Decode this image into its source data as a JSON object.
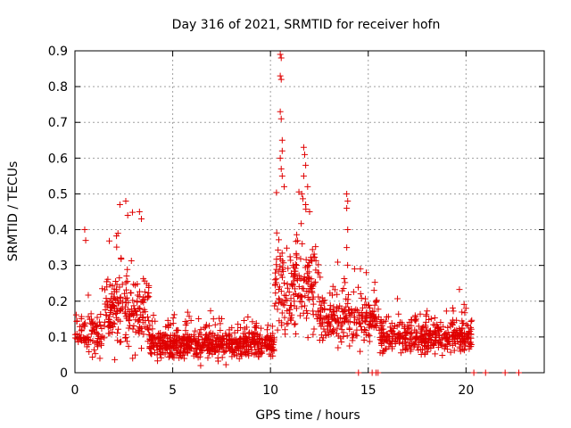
{
  "chart_data": {
    "type": "scatter",
    "title": "Day 316 of 2021, SRMTID for receiver hofn",
    "xlabel": "GPS time / hours",
    "ylabel": "SRMTID / TECUs",
    "xlim": [
      0,
      24
    ],
    "ylim": [
      0,
      0.9
    ],
    "x_ticks": [
      0,
      5,
      10,
      15,
      20
    ],
    "y_ticks": [
      0,
      0.1,
      0.2,
      0.3,
      0.4,
      0.5,
      0.6,
      0.7,
      0.8,
      0.9
    ],
    "x_tick_labels": [
      "0",
      "5",
      "10",
      "15",
      "20"
    ],
    "y_tick_labels": [
      "0",
      "0.1",
      "0.2",
      "0.3",
      "0.4",
      "0.5",
      "0.6",
      "0.7",
      "0.8",
      "0.9"
    ],
    "grid": true,
    "marker": "+",
    "marker_color": "#e00000",
    "activity_profile": [
      {
        "from": 0.0,
        "to": 1.5,
        "center": 0.11,
        "spread": 0.05,
        "density": 10
      },
      {
        "from": 1.5,
        "to": 3.8,
        "center": 0.17,
        "spread": 0.09,
        "density": 14
      },
      {
        "from": 3.8,
        "to": 10.2,
        "center": 0.08,
        "spread": 0.035,
        "density": 16
      },
      {
        "from": 10.2,
        "to": 12.5,
        "center": 0.24,
        "spread": 0.12,
        "density": 14
      },
      {
        "from": 12.5,
        "to": 15.6,
        "center": 0.15,
        "spread": 0.06,
        "density": 12
      },
      {
        "from": 15.6,
        "to": 20.3,
        "center": 0.1,
        "spread": 0.04,
        "density": 14
      }
    ],
    "outliers": [
      {
        "x": 0.5,
        "y": 0.4
      },
      {
        "x": 0.55,
        "y": 0.37
      },
      {
        "x": 2.3,
        "y": 0.47
      },
      {
        "x": 2.6,
        "y": 0.48
      },
      {
        "x": 2.7,
        "y": 0.44
      },
      {
        "x": 3.3,
        "y": 0.45
      },
      {
        "x": 3.4,
        "y": 0.43
      },
      {
        "x": 2.2,
        "y": 0.39
      },
      {
        "x": 10.5,
        "y": 0.89
      },
      {
        "x": 10.55,
        "y": 0.88
      },
      {
        "x": 10.5,
        "y": 0.83
      },
      {
        "x": 10.55,
        "y": 0.82
      },
      {
        "x": 10.5,
        "y": 0.73
      },
      {
        "x": 10.55,
        "y": 0.71
      },
      {
        "x": 10.6,
        "y": 0.65
      },
      {
        "x": 10.6,
        "y": 0.62
      },
      {
        "x": 10.5,
        "y": 0.6
      },
      {
        "x": 10.55,
        "y": 0.57
      },
      {
        "x": 10.6,
        "y": 0.55
      },
      {
        "x": 10.7,
        "y": 0.52
      },
      {
        "x": 11.7,
        "y": 0.63
      },
      {
        "x": 11.75,
        "y": 0.61
      },
      {
        "x": 11.8,
        "y": 0.58
      },
      {
        "x": 11.7,
        "y": 0.55
      },
      {
        "x": 11.9,
        "y": 0.52
      },
      {
        "x": 11.6,
        "y": 0.5
      },
      {
        "x": 11.8,
        "y": 0.47
      },
      {
        "x": 12.0,
        "y": 0.45
      },
      {
        "x": 13.9,
        "y": 0.5
      },
      {
        "x": 13.95,
        "y": 0.48
      },
      {
        "x": 13.9,
        "y": 0.46
      },
      {
        "x": 13.95,
        "y": 0.4
      },
      {
        "x": 13.9,
        "y": 0.35
      },
      {
        "x": 14.3,
        "y": 0.29
      },
      {
        "x": 14.6,
        "y": 0.29
      },
      {
        "x": 14.9,
        "y": 0.28
      }
    ],
    "zero_points": [
      {
        "x": 14.5,
        "y": 0
      },
      {
        "x": 15.2,
        "y": 0
      },
      {
        "x": 15.4,
        "y": 0
      },
      {
        "x": 15.5,
        "y": 0
      },
      {
        "x": 20.4,
        "y": 0
      },
      {
        "x": 21.0,
        "y": 0
      },
      {
        "x": 22.0,
        "y": 0
      },
      {
        "x": 22.7,
        "y": 0
      }
    ]
  }
}
